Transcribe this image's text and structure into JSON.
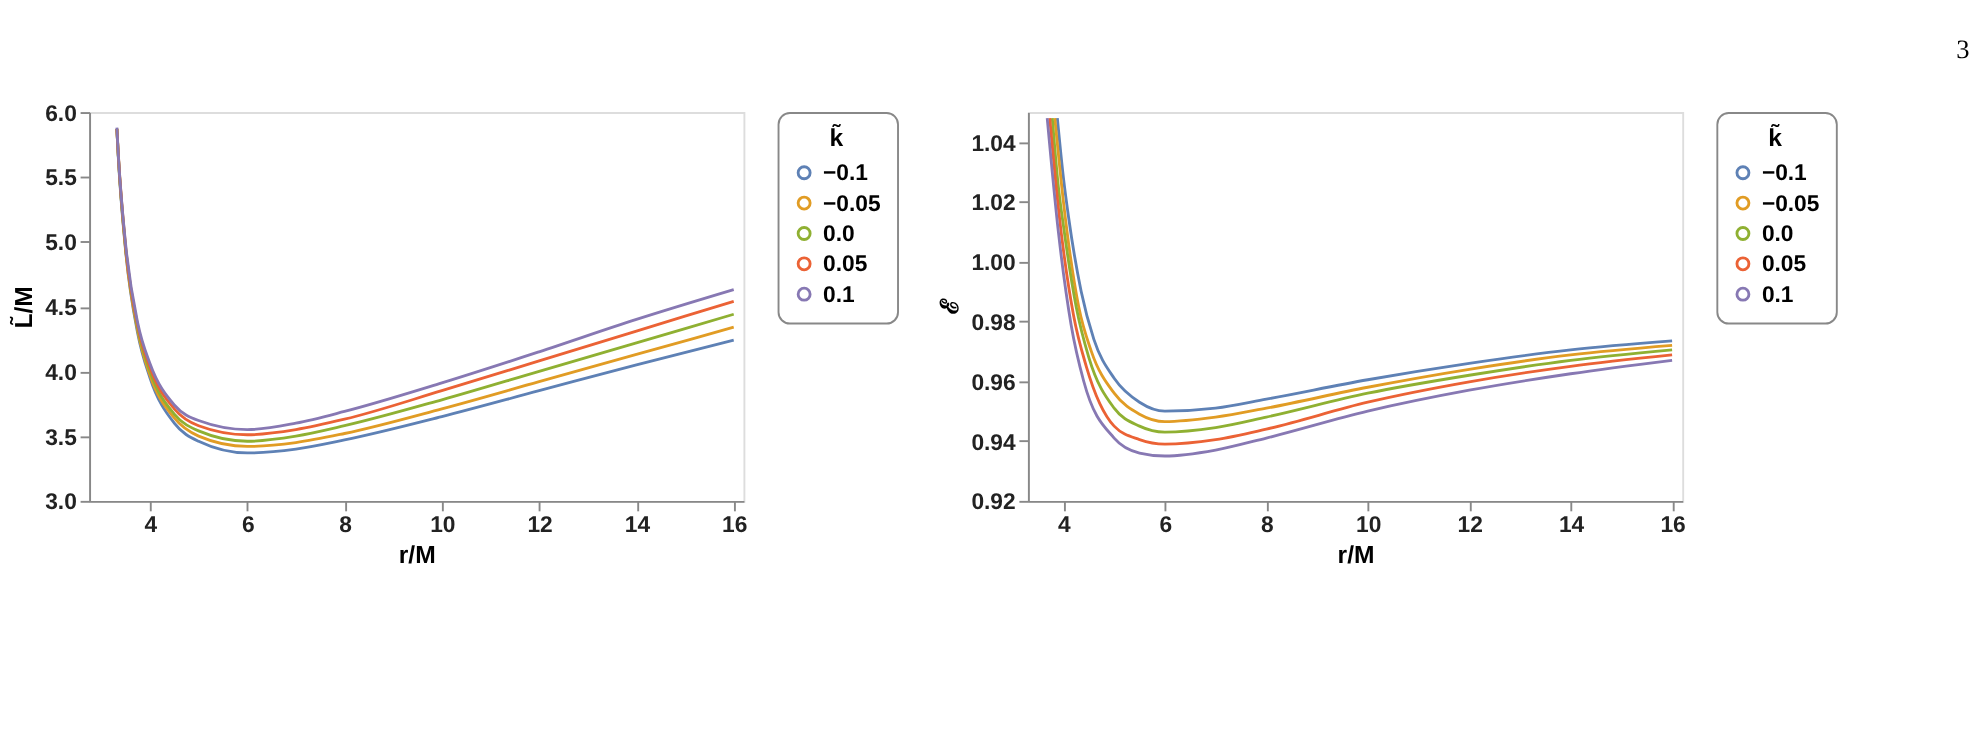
{
  "chart_data": [
    {
      "type": "line",
      "xlabel": "r/M",
      "ylabel": "L̃/M",
      "legend_title": "k̃",
      "legend": "right",
      "grid": false,
      "xlim": [
        2.75,
        16.2
      ],
      "xticks": [
        4,
        6,
        8,
        10,
        12,
        14,
        16
      ],
      "ylim": [
        3.0,
        6.0
      ],
      "yticks": [
        {
          "value": 3.0,
          "label": "3.0"
        },
        {
          "value": 3.5,
          "label": "3.5"
        },
        {
          "value": 4.0,
          "label": "4.0"
        },
        {
          "value": 4.5,
          "label": "4.5"
        },
        {
          "value": 5.0,
          "label": "5.0"
        },
        {
          "value": 5.5,
          "label": "5.5"
        },
        {
          "value": 6.0,
          "label": "6.0"
        }
      ],
      "x": [
        3.32,
        3.35,
        3.5,
        3.75,
        4,
        4.5,
        5,
        6,
        7,
        8,
        10,
        12,
        14,
        16
      ],
      "series": [
        {
          "name": "−0.1",
          "color": "#5e81b5",
          "values": [
            5.87,
            5.65,
            4.93,
            4.29,
            3.95,
            3.6,
            3.46,
            3.37,
            3.4,
            3.47,
            3.65,
            3.85,
            4.05,
            4.24
          ]
        },
        {
          "name": "−0.05",
          "color": "#e19c24",
          "values": [
            5.87,
            5.66,
            4.94,
            4.31,
            3.97,
            3.64,
            3.5,
            3.42,
            3.45,
            3.52,
            3.71,
            3.92,
            4.13,
            4.34
          ]
        },
        {
          "name": "0.0",
          "color": "#8fb032",
          "values": [
            5.87,
            5.66,
            4.95,
            4.33,
            4.0,
            3.67,
            3.54,
            3.46,
            3.5,
            3.58,
            3.78,
            4.0,
            4.22,
            4.44
          ]
        },
        {
          "name": "0.05",
          "color": "#eb6235",
          "values": [
            5.87,
            5.67,
            4.96,
            4.35,
            4.03,
            3.71,
            3.58,
            3.51,
            3.55,
            3.63,
            3.85,
            4.08,
            4.31,
            4.54
          ]
        },
        {
          "name": "0.1",
          "color": "#8778b3",
          "values": [
            5.88,
            5.67,
            4.98,
            4.37,
            4.06,
            3.74,
            3.62,
            3.55,
            3.6,
            3.69,
            3.91,
            4.15,
            4.4,
            4.63
          ]
        }
      ]
    },
    {
      "type": "line",
      "xlabel": "r/M",
      "ylabel": "ℰ",
      "legend_title": "k̃",
      "legend": "right",
      "grid": false,
      "annotations": [
        "3"
      ],
      "xlim": [
        3.3,
        16.2
      ],
      "xticks": [
        4,
        6,
        8,
        10,
        12,
        14,
        16
      ],
      "ylim": [
        0.92,
        1.05
      ],
      "yticks": [
        {
          "value": 0.92,
          "label": "0.92"
        },
        {
          "value": 0.94,
          "label": "0.94"
        },
        {
          "value": 0.96,
          "label": "0.96"
        },
        {
          "value": 0.98,
          "label": "0.98"
        },
        {
          "value": 1.0,
          "label": "1.00"
        },
        {
          "value": 1.02,
          "label": "1.02"
        },
        {
          "value": 1.04,
          "label": "1.04"
        }
      ],
      "series": [
        {
          "name": "−0.1",
          "color": "#5e81b5",
          "x": [
            3.88,
            4.0,
            4.1,
            4.35,
            4.6,
            5,
            5.5,
            6,
            7,
            8,
            10,
            12,
            14,
            16
          ],
          "values": [
            1.048,
            1.028,
            1.015,
            0.99,
            0.974,
            0.961,
            0.953,
            0.95,
            0.951,
            0.954,
            0.9605,
            0.966,
            0.9705,
            0.9735
          ]
        },
        {
          "name": "−0.05",
          "color": "#e19c24",
          "x": [
            3.83,
            4.0,
            4.3,
            4.55,
            5,
            5.5,
            6,
            7,
            8,
            10,
            12,
            14,
            16
          ],
          "values": [
            1.048,
            1.02,
            0.985,
            0.97,
            0.956,
            0.949,
            0.9465,
            0.948,
            0.951,
            0.958,
            0.964,
            0.9688,
            0.972
          ]
        },
        {
          "name": "0.0",
          "color": "#8fb032",
          "x": [
            3.78,
            3.9,
            4.0,
            4.25,
            4.5,
            5,
            5.5,
            6,
            7,
            8,
            10,
            12,
            14,
            16
          ],
          "values": [
            1.048,
            1.025,
            1.012,
            0.985,
            0.968,
            0.951,
            0.945,
            0.943,
            0.9445,
            0.948,
            0.956,
            0.962,
            0.967,
            0.9705
          ]
        },
        {
          "name": "0.05",
          "color": "#eb6235",
          "x": [
            3.73,
            3.9,
            4.2,
            4.45,
            5,
            5.5,
            6,
            7,
            8,
            10,
            12,
            14,
            16
          ],
          "values": [
            1.048,
            1.018,
            0.982,
            0.965,
            0.945,
            0.9405,
            0.939,
            0.9405,
            0.944,
            0.953,
            0.9598,
            0.965,
            0.9688
          ]
        },
        {
          "name": "0.1",
          "color": "#8778b3",
          "x": [
            3.68,
            3.9,
            4.15,
            4.4,
            5,
            5.5,
            6,
            7,
            8,
            10,
            12,
            14,
            16
          ],
          "values": [
            1.048,
            1.01,
            0.979,
            0.96,
            0.941,
            0.936,
            0.935,
            0.937,
            0.941,
            0.95,
            0.957,
            0.9625,
            0.967
          ]
        }
      ]
    }
  ]
}
